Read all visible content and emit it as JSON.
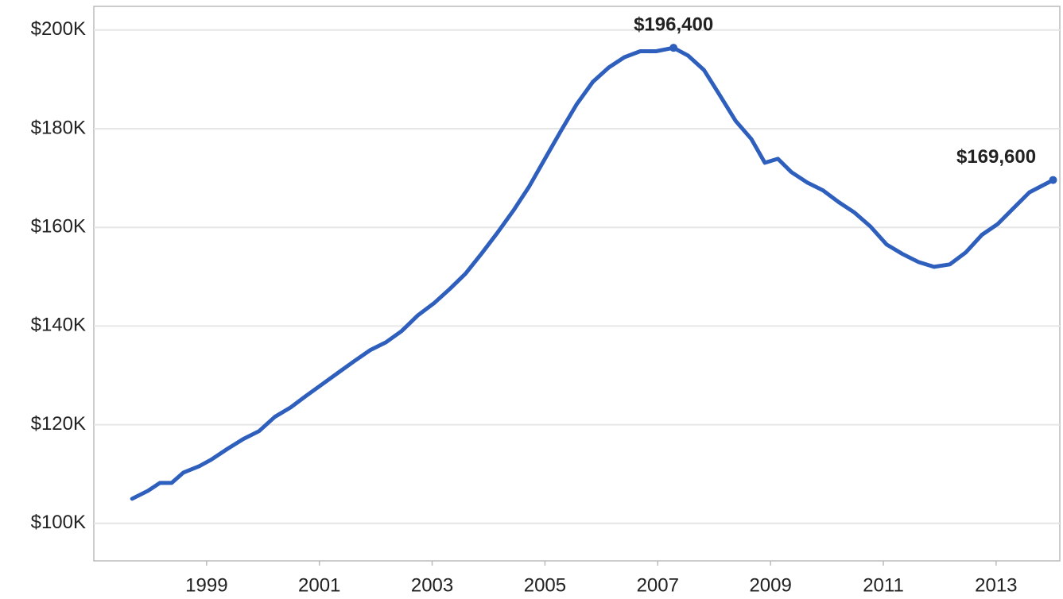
{
  "chart_data": {
    "type": "line",
    "x": [
      1997.68,
      1997.96,
      1998.17,
      1998.38,
      1998.59,
      1998.87,
      1999.08,
      1999.37,
      1999.65,
      1999.93,
      2000.21,
      2000.49,
      2000.77,
      2001.06,
      2001.34,
      2001.62,
      2001.9,
      2002.18,
      2002.46,
      2002.75,
      2003.03,
      2003.31,
      2003.59,
      2003.87,
      2004.15,
      2004.44,
      2004.72,
      2005.0,
      2005.28,
      2005.56,
      2005.85,
      2006.13,
      2006.41,
      2006.69,
      2006.97,
      2007.28,
      2007.54,
      2007.82,
      2008.1,
      2008.38,
      2008.66,
      2008.9,
      2009.13,
      2009.37,
      2009.65,
      2009.93,
      2010.21,
      2010.49,
      2010.77,
      2011.06,
      2011.34,
      2011.62,
      2011.9,
      2012.18,
      2012.46,
      2012.75,
      2013.03,
      2013.31,
      2013.59,
      2014.01
    ],
    "series": [
      {
        "color": "#2f5fbd",
        "values": [
          105000,
          106600,
          108200,
          108200,
          110300,
          111600,
          112900,
          115100,
          117100,
          118700,
          121600,
          123500,
          125900,
          128300,
          130600,
          132900,
          135100,
          136700,
          139000,
          142200,
          144600,
          147500,
          150600,
          154600,
          158800,
          163400,
          168300,
          173900,
          179500,
          184900,
          189500,
          192400,
          194500,
          195700,
          195700,
          196400,
          194800,
          191900,
          186800,
          181600,
          177900,
          173100,
          173900,
          171200,
          169100,
          167500,
          165100,
          163000,
          160200,
          156500,
          154600,
          153000,
          152000,
          152500,
          154900,
          158500,
          160700,
          163900,
          167100,
          169600
        ],
        "value_labels": [
          null,
          null,
          null,
          null,
          null,
          null,
          null,
          null,
          null,
          null,
          null,
          null,
          null,
          null,
          null,
          null,
          null,
          null,
          null,
          null,
          null,
          null,
          null,
          null,
          null,
          null,
          null,
          null,
          null,
          null,
          null,
          null,
          null,
          null,
          null,
          "$196,400",
          null,
          null,
          null,
          null,
          null,
          null,
          null,
          null,
          null,
          null,
          null,
          null,
          null,
          null,
          null,
          null,
          null,
          null,
          null,
          null,
          null,
          null,
          null,
          "$169,600"
        ]
      }
    ],
    "xlim": [
      1997.0,
      2014.13
    ],
    "xticks": [
      1999,
      2001,
      2003,
      2005,
      2007,
      2009,
      2011,
      2013
    ],
    "ylim": [
      92400,
      204800
    ],
    "yticks": [
      {
        "value": 100000,
        "label": "$100K"
      },
      {
        "value": 120000,
        "label": "$120K"
      },
      {
        "value": 140000,
        "label": "$140K"
      },
      {
        "value": 160000,
        "label": "$160K"
      },
      {
        "value": 180000,
        "label": "$180K"
      },
      {
        "value": 200000,
        "label": "$200K"
      }
    ],
    "grid": true
  }
}
